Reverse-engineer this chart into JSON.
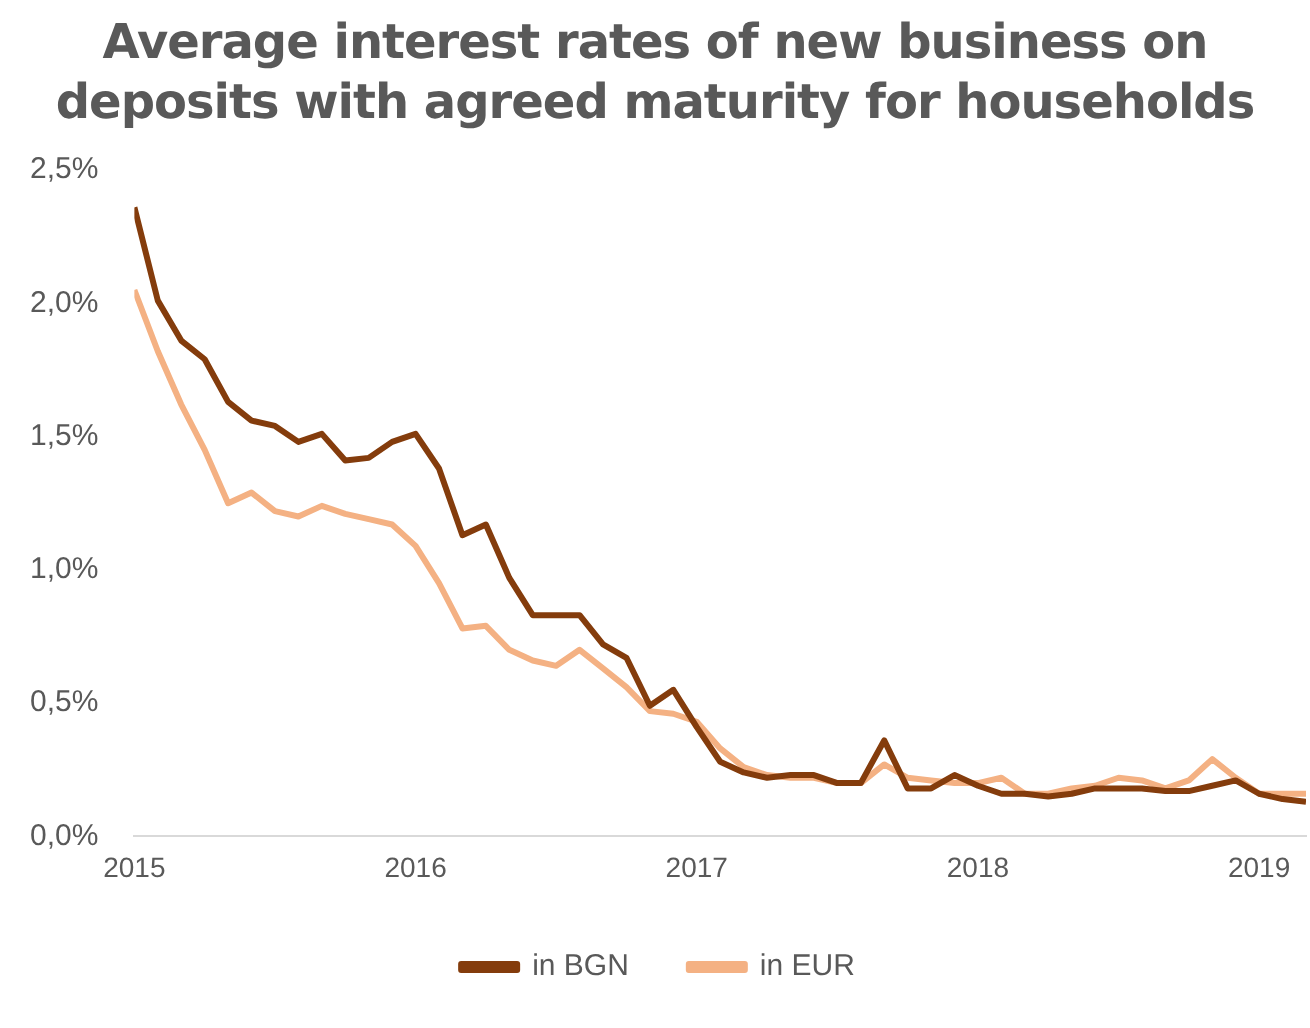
{
  "chart_data": {
    "type": "line",
    "title": "Average interest rates of new business on deposits with agreed maturity for households",
    "x": [
      "2015-01",
      "2015-02",
      "2015-03",
      "2015-04",
      "2015-05",
      "2015-06",
      "2015-07",
      "2015-08",
      "2015-09",
      "2015-10",
      "2015-11",
      "2015-12",
      "2016-01",
      "2016-02",
      "2016-03",
      "2016-04",
      "2016-05",
      "2016-06",
      "2016-07",
      "2016-08",
      "2016-09",
      "2016-10",
      "2016-11",
      "2016-12",
      "2017-01",
      "2017-02",
      "2017-03",
      "2017-04",
      "2017-05",
      "2017-06",
      "2017-07",
      "2017-08",
      "2017-09",
      "2017-10",
      "2017-11",
      "2017-12",
      "2018-01",
      "2018-02",
      "2018-03",
      "2018-04",
      "2018-05",
      "2018-06",
      "2018-07",
      "2018-08",
      "2018-09",
      "2018-10",
      "2018-11",
      "2018-12",
      "2019-01",
      "2019-02",
      "2019-03"
    ],
    "series": [
      {
        "name": "in BGN",
        "color": "#843c0c",
        "values": [
          2.36,
          2.01,
          1.86,
          1.79,
          1.63,
          1.56,
          1.54,
          1.48,
          1.51,
          1.41,
          1.42,
          1.48,
          1.51,
          1.38,
          1.13,
          1.17,
          0.97,
          0.83,
          0.83,
          0.83,
          0.72,
          0.67,
          0.49,
          0.55,
          0.41,
          0.28,
          0.24,
          0.22,
          0.23,
          0.23,
          0.2,
          0.2,
          0.36,
          0.18,
          0.18,
          0.23,
          0.19,
          0.16,
          0.16,
          0.15,
          0.16,
          0.18,
          0.18,
          0.18,
          0.17,
          0.17,
          0.19,
          0.21,
          0.16,
          0.14,
          0.13
        ]
      },
      {
        "name": "in EUR",
        "color": "#f4b183",
        "values": [
          2.05,
          1.82,
          1.62,
          1.45,
          1.25,
          1.29,
          1.22,
          1.2,
          1.24,
          1.21,
          1.19,
          1.17,
          1.09,
          0.95,
          0.78,
          0.79,
          0.7,
          0.66,
          0.64,
          0.7,
          0.63,
          0.56,
          0.47,
          0.46,
          0.43,
          0.33,
          0.26,
          0.23,
          0.22,
          0.22,
          0.2,
          0.2,
          0.27,
          0.22,
          0.21,
          0.2,
          0.2,
          0.22,
          0.16,
          0.16,
          0.18,
          0.19,
          0.22,
          0.21,
          0.18,
          0.21,
          0.29,
          0.22,
          0.16,
          0.16,
          0.16
        ]
      }
    ],
    "xlim": [
      "2015-01",
      "2019-03"
    ],
    "xticks": [
      "2015",
      "2016",
      "2017",
      "2018",
      "2019"
    ],
    "ylim": [
      0,
      2.5
    ],
    "yticks": [
      {
        "value": 0,
        "label": "0,0%"
      },
      {
        "value": 0.5,
        "label": "0,5%"
      },
      {
        "value": 1,
        "label": "1,0%"
      },
      {
        "value": 1.5,
        "label": "1,5%"
      },
      {
        "value": 2,
        "label": "2,0%"
      },
      {
        "value": 2.5,
        "label": "2,5%"
      }
    ],
    "grid": false,
    "legend": "bottom",
    "marker": "none",
    "line_style": "solid"
  }
}
